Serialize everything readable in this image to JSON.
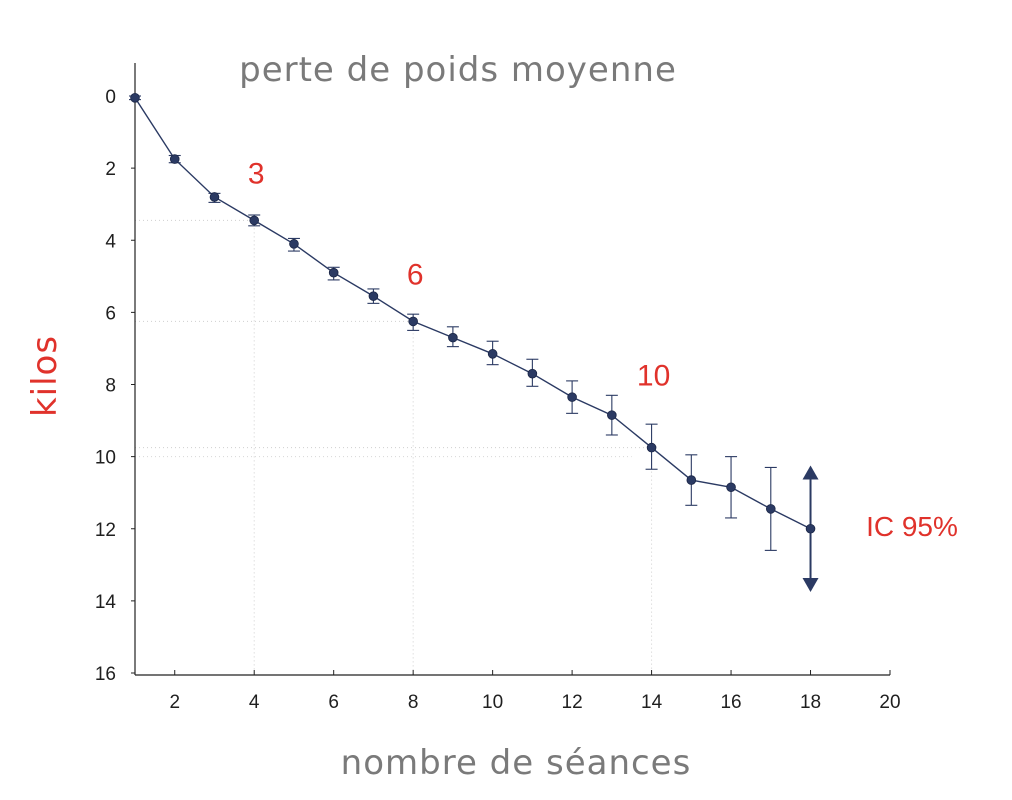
{
  "chart_data": {
    "type": "line",
    "title": "perte de poids moyenne",
    "xlabel": "nombre de séances",
    "ylabel": "kilos",
    "xlim": [
      1,
      20
    ],
    "ylim": [
      0,
      16
    ],
    "y_inverted": true,
    "xticks": [
      2,
      4,
      6,
      8,
      10,
      12,
      14,
      16,
      18,
      20
    ],
    "yticks": [
      0,
      2,
      4,
      6,
      8,
      10,
      12,
      14,
      16
    ],
    "series_color": "#2b3a63",
    "annotation_color": "#e0322b",
    "x": [
      1,
      2,
      3,
      4,
      5,
      6,
      7,
      8,
      9,
      10,
      11,
      12,
      13,
      14,
      15,
      16,
      17,
      18
    ],
    "y": [
      0.05,
      1.75,
      2.8,
      3.45,
      4.1,
      4.9,
      5.55,
      6.25,
      6.7,
      7.15,
      7.7,
      8.35,
      8.85,
      9.75,
      10.65,
      10.85,
      11.45,
      12.0
    ],
    "err_low": [
      0.0,
      1.65,
      2.7,
      3.3,
      3.95,
      4.75,
      5.35,
      6.05,
      6.4,
      6.8,
      7.3,
      7.9,
      8.3,
      9.1,
      9.95,
      10.0,
      10.3,
      10.3
    ],
    "err_high": [
      0.1,
      1.85,
      2.95,
      3.6,
      4.3,
      5.1,
      5.75,
      6.5,
      6.95,
      7.45,
      8.05,
      8.8,
      9.4,
      10.35,
      11.35,
      11.7,
      12.6,
      13.7
    ],
    "annotations": [
      {
        "text": "3",
        "x": 4,
        "y": 2.1
      },
      {
        "text": "6",
        "x": 8,
        "y": 4.9
      },
      {
        "text": "10",
        "x": 14,
        "y": 7.7
      }
    ],
    "reference_lines": [
      {
        "x": 4,
        "y": 3.45
      },
      {
        "x": 8,
        "y": 6.25
      },
      {
        "x": 14,
        "y": 9.75
      }
    ],
    "ci_label": "IC 95%"
  }
}
